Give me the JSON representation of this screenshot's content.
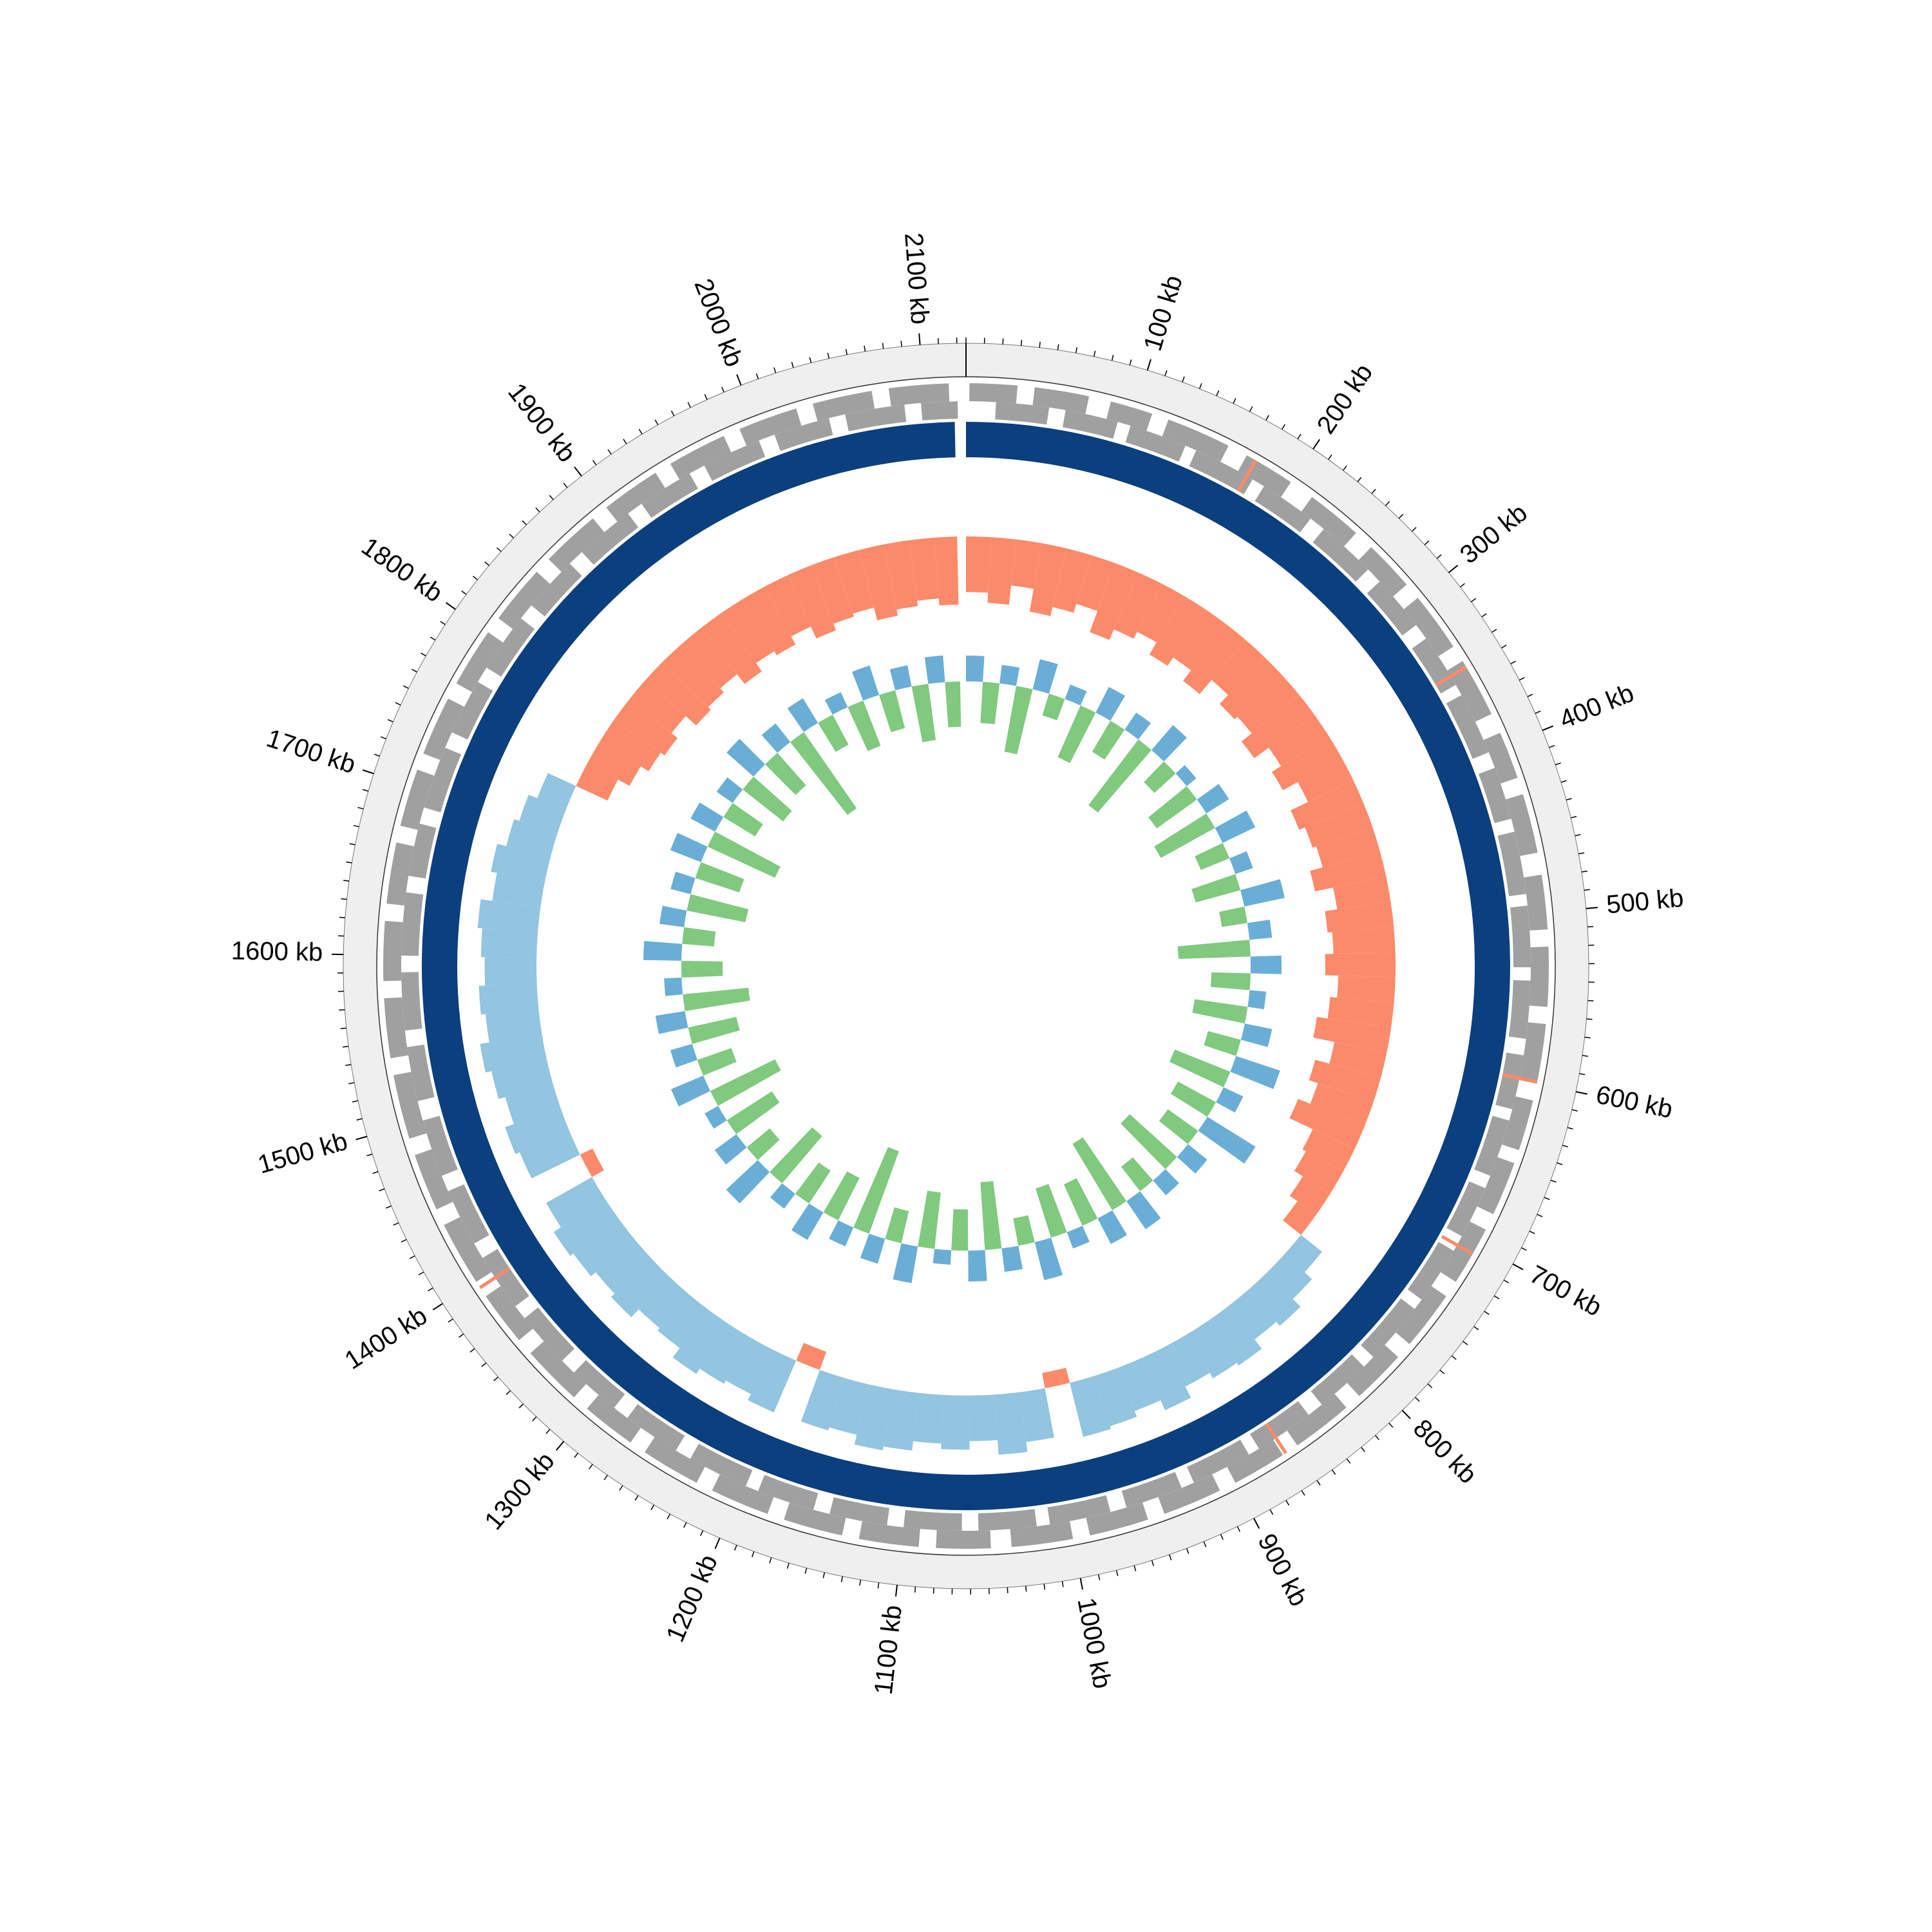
{
  "chart_data": {
    "type": "circular-genome",
    "xlim": [
      0,
      2125
    ],
    "genome_length": 2118,
    "record_color": "#0b3f7e",
    "axis_color": "#efefef",
    "xticks": [
      {
        "value": 100,
        "label": "100 kb"
      },
      {
        "value": 200,
        "label": "200 kb"
      },
      {
        "value": 300,
        "label": "300 kb"
      },
      {
        "value": 400,
        "label": "400 kb"
      },
      {
        "value": 500,
        "label": "500 kb"
      },
      {
        "value": 600,
        "label": "600 kb"
      },
      {
        "value": 700,
        "label": "700 kb"
      },
      {
        "value": 800,
        "label": "800 kb"
      },
      {
        "value": 900,
        "label": "900 kb"
      },
      {
        "value": 1000,
        "label": "1000 kb"
      },
      {
        "value": 1100,
        "label": "1100 kb"
      },
      {
        "value": 1200,
        "label": "1200 kb"
      },
      {
        "value": 1300,
        "label": "1300 kb"
      },
      {
        "value": 1400,
        "label": "1400 kb"
      },
      {
        "value": 1500,
        "label": "1500 kb"
      },
      {
        "value": 1600,
        "label": "1600 kb"
      },
      {
        "value": 1700,
        "label": "1700 kb"
      },
      {
        "value": 1800,
        "label": "1800 kb"
      },
      {
        "value": 1900,
        "label": "1900 kb"
      },
      {
        "value": 2000,
        "label": "2000 kb"
      },
      {
        "value": 2100,
        "label": "2100 kb"
      }
    ],
    "minor_xticks": [
      0,
      10,
      20,
      30,
      40,
      50,
      60,
      70,
      80,
      90,
      100,
      110,
      120,
      130,
      140,
      150,
      160,
      170,
      180,
      190,
      200,
      210,
      220,
      230,
      240,
      250,
      260,
      270,
      280,
      290,
      300,
      310,
      320,
      330,
      340,
      350,
      360,
      370,
      380,
      390,
      400,
      410,
      420,
      430,
      440,
      450,
      460,
      470,
      480,
      490,
      500,
      510,
      520,
      530,
      540,
      550,
      560,
      570,
      580,
      590,
      600,
      610,
      620,
      630,
      640,
      650,
      660,
      670,
      680,
      690,
      700,
      710,
      720,
      730,
      740,
      750,
      760,
      770,
      780,
      790,
      800,
      810,
      820,
      830,
      840,
      850,
      860,
      870,
      880,
      890,
      900,
      910,
      920,
      930,
      940,
      950,
      960,
      970,
      980,
      990,
      1000,
      1010,
      1020,
      1030,
      1040,
      1050,
      1060,
      1070,
      1080,
      1090,
      1100,
      1110,
      1120,
      1130,
      1140,
      1150,
      1160,
      1170,
      1180,
      1190,
      1200,
      1210,
      1220,
      1230,
      1240,
      1250,
      1260,
      1270,
      1280,
      1290,
      1300,
      1310,
      1320,
      1330,
      1340,
      1350,
      1360,
      1370,
      1380,
      1390,
      1400,
      1410,
      1420,
      1430,
      1440,
      1450,
      1460,
      1470,
      1480,
      1490,
      1500,
      1510,
      1520,
      1530,
      1540,
      1550,
      1560,
      1570,
      1580,
      1590,
      1600,
      1610,
      1620,
      1630,
      1640,
      1650,
      1660,
      1670,
      1680,
      1690,
      1700,
      1710,
      1720,
      1730,
      1740,
      1750,
      1760,
      1770,
      1780,
      1790,
      1800,
      1810,
      1820,
      1830,
      1840,
      1850,
      1860,
      1870,
      1880,
      1890,
      1900,
      1910,
      1920,
      1930,
      1940,
      1950,
      1960,
      1970,
      1980,
      1990,
      2000,
      2010,
      2020,
      2030,
      2040,
      2050,
      2060,
      2070,
      2080,
      2090,
      2100,
      2110,
      2120
    ],
    "gene_color": "#a0a0a0",
    "rna_color": "#fb8a6a",
    "forward_genes": {
      "starts": [
        2,
        40,
        85,
        120,
        170,
        215,
        260,
        300,
        345,
        392,
        430,
        478,
        520,
        565,
        610,
        648,
        690,
        735,
        780,
        822,
        868,
        910,
        955,
        1000,
        1048,
        1090,
        1135,
        1180,
        1225,
        1270,
        1312,
        1358,
        1400,
        1448,
        1492,
        1540,
        1585,
        1630,
        1676,
        1720,
        1765,
        1810,
        1855,
        1900,
        1945,
        1990,
        2035,
        2080
      ],
      "ends": [
        30,
        72,
        110,
        158,
        200,
        248,
        290,
        335,
        380,
        420,
        465,
        510,
        555,
        600,
        640,
        680,
        725,
        770,
        812,
        858,
        900,
        945,
        990,
        1036,
        1080,
        1125,
        1170,
        1215,
        1260,
        1302,
        1348,
        1390,
        1438,
        1482,
        1530,
        1575,
        1620,
        1666,
        1710,
        1755,
        1800,
        1845,
        1890,
        1935,
        1980,
        2025,
        2070,
        2115
      ]
    },
    "reverse_genes": {
      "starts": [
        18,
        60,
        100,
        142,
        188,
        232,
        278,
        322,
        362,
        410,
        450,
        495,
        540,
        585,
        625,
        668,
        710,
        752,
        798,
        842,
        885,
        930,
        975,
        1020,
        1065,
        1110,
        1155,
        1198,
        1245,
        1290,
        1332,
        1375,
        1420,
        1465,
        1512,
        1555,
        1600,
        1648,
        1690,
        1738,
        1782,
        1828,
        1872,
        1918,
        1962,
        2008,
        2052,
        2098
      ],
      "ends": [
        50,
        92,
        135,
        180,
        222,
        268,
        312,
        355,
        400,
        442,
        488,
        532,
        575,
        618,
        660,
        700,
        745,
        790,
        832,
        878,
        922,
        965,
        1012,
        1055,
        1100,
        1145,
        1190,
        1235,
        1280,
        1322,
        1366,
        1410,
        1455,
        1500,
        1545,
        1590,
        1638,
        1680,
        1728,
        1772,
        1818,
        1862,
        1908,
        1952,
        1998,
        2042,
        2088,
        2120
      ]
    },
    "rna_genes": {
      "starts": [
        175,
        348,
        598,
        705,
        865,
        1395
      ],
      "ends": [
        177,
        350,
        600,
        707,
        867,
        1397
      ]
    },
    "x": [
      0,
      20,
      40,
      60,
      80,
      100,
      120,
      140,
      160,
      180,
      200,
      220,
      240,
      260,
      280,
      300,
      320,
      340,
      360,
      380,
      400,
      420,
      440,
      460,
      480,
      500,
      520,
      540,
      560,
      580,
      600,
      620,
      640,
      660,
      680,
      700,
      720,
      740,
      760,
      780,
      800,
      820,
      840,
      860,
      880,
      900,
      920,
      940,
      960,
      980,
      1000,
      1020,
      1040,
      1060,
      1080,
      1100,
      1120,
      1140,
      1160,
      1180,
      1200,
      1220,
      1240,
      1260,
      1280,
      1300,
      1320,
      1340,
      1360,
      1380,
      1400,
      1420,
      1440,
      1460,
      1480,
      1500,
      1520,
      1540,
      1560,
      1580,
      1600,
      1620,
      1640,
      1660,
      1680,
      1700,
      1720,
      1740,
      1760,
      1780,
      1800,
      1820,
      1840,
      1860,
      1880,
      1900,
      1920,
      1940,
      1960,
      1980,
      2000,
      2020,
      2040,
      2060,
      2080,
      2100
    ],
    "gc_content": {
      "ylim": [
        -100,
        100
      ],
      "positive_color": "#93c4e0",
      "negative_color": "#fb8a6a",
      "values": [
        -72,
        -85,
        -60,
        -90,
        -78,
        -66,
        -95,
        -80,
        -70,
        -88,
        -75,
        -92,
        -68,
        -84,
        -79,
        -96,
        -73,
        -87,
        -65,
        -90,
        -82,
        -77,
        -94,
        -70,
        -86,
        -80,
        -91,
        -74,
        -83,
        -97,
        -69,
        -88,
        -76,
        -93,
        -60,
        -55,
        -42,
        -30,
        35,
        48,
        62,
        55,
        70,
        66,
        58,
        74,
        60,
        68,
        72,
        -20,
        65,
        78,
        59,
        70,
        63,
        75,
        80,
        67,
        71,
        -25,
        73,
        64,
        69,
        77,
        62,
        58,
        72,
        66,
        74,
        79,
        68,
        -18,
        70,
        76,
        64,
        73,
        81,
        69,
        75,
        67,
        72,
        78,
        63,
        71,
        59,
        52,
        40,
        -45,
        -62,
        -74,
        -80,
        -70,
        -88,
        -83,
        -76,
        -92,
        -79,
        -85,
        -73,
        -90,
        -81,
        -77,
        -94,
        -86,
        -79,
        -88
      ]
    },
    "gc_skew": {
      "ylim": [
        -100,
        100
      ],
      "positive_color": "#6aaed6",
      "negative_color": "#80c97f",
      "values": [
        25,
        -40,
        18,
        -65,
        30,
        -22,
        15,
        -55,
        28,
        -35,
        20,
        -80,
        32,
        -28,
        12,
        -48,
        26,
        -60,
        35,
        -30,
        18,
        -45,
        40,
        -25,
        22,
        -70,
        30,
        -38,
        16,
        -52,
        27,
        -33,
        45,
        -58,
        21,
        -42,
        55,
        -36,
        24,
        -62,
        19,
        -30,
        33,
        -75,
        28,
        -44,
        17,
        -50,
        38,
        -27,
        23,
        -66,
        30,
        -40,
        14,
        -55,
        36,
        -32,
        25,
        -85,
        20,
        -46,
        31,
        -38,
        18,
        -60,
        42,
        -29,
        26,
        -52,
        15,
        -70,
        34,
        -35,
        22,
        -48,
        29,
        -64,
        17,
        -40,
        37,
        -31,
        24,
        -58,
        20,
        -45,
        32,
        -72,
        27,
        -36,
        19,
        -50,
        35,
        -42,
        23,
        -90,
        28,
        -33,
        16,
        -47,
        30,
        -38,
        21,
        -55,
        26,
        -44
      ]
    }
  }
}
